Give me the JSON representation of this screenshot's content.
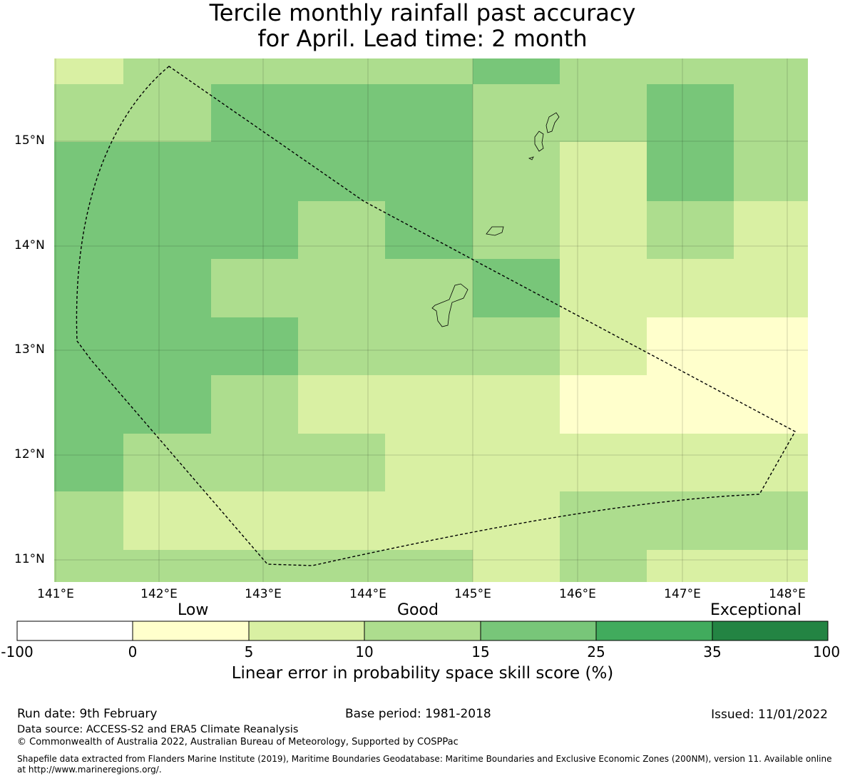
{
  "title_line1": "Tercile monthly rainfall past accuracy",
  "title_line2": "for April. Lead time: 2 month",
  "map": {
    "lat_labels": [
      "15°N",
      "14°N",
      "13°N",
      "12°N",
      "11°N"
    ],
    "lon_labels": [
      "141°E",
      "142°E",
      "143°E",
      "144°E",
      "145°E",
      "146°E",
      "147°E",
      "148°E"
    ],
    "grid_skill_classes": [
      [
        2,
        3,
        3,
        3,
        3,
        4,
        3,
        3,
        3
      ],
      [
        3,
        3,
        4,
        4,
        4,
        3,
        3,
        4,
        3
      ],
      [
        4,
        4,
        4,
        4,
        4,
        3,
        2,
        4,
        3
      ],
      [
        4,
        4,
        4,
        3,
        4,
        3,
        2,
        3,
        2
      ],
      [
        4,
        4,
        3,
        3,
        3,
        4,
        2,
        2,
        2
      ],
      [
        4,
        4,
        4,
        3,
        3,
        3,
        2,
        1,
        1
      ],
      [
        4,
        4,
        3,
        2,
        2,
        2,
        1,
        1,
        1
      ],
      [
        4,
        3,
        3,
        3,
        2,
        2,
        2,
        2,
        2
      ],
      [
        3,
        2,
        2,
        2,
        2,
        2,
        3,
        3,
        3
      ],
      [
        3,
        3,
        3,
        3,
        3,
        2,
        3,
        2,
        2
      ]
    ]
  },
  "colorbar": {
    "categories": [
      "Low",
      "Good",
      "Exceptional"
    ],
    "ticks": [
      "-100",
      "0",
      "5",
      "10",
      "15",
      "25",
      "35",
      "100"
    ],
    "colors": [
      "#ffffff",
      "#ffffcc",
      "#d9f0a3",
      "#addd8e",
      "#78c679",
      "#41ab5d",
      "#238443"
    ],
    "label": "Linear error in probability space skill score (%)"
  },
  "footer": {
    "run_date": "Run date: 9th February",
    "base_period": "Base period: 1981-2018",
    "issued": "Issued: 11/01/2022",
    "data_source": "Data source: ACCESS-S2 and ERA5 Climate Reanalysis",
    "copyright": "© Commonwealth of Australia 2022, Australian Bureau of Meteorology, Supported by COSPPac",
    "shapefile_line1": "Shapefile data extracted from Flanders Marine Institute (2019), Maritime Boundaries Geodatabase: Maritime Boundaries and Exclusive Economic Zones (200NM), version 11. Available online",
    "shapefile_line2": "at http://www.marineregions.org/."
  }
}
